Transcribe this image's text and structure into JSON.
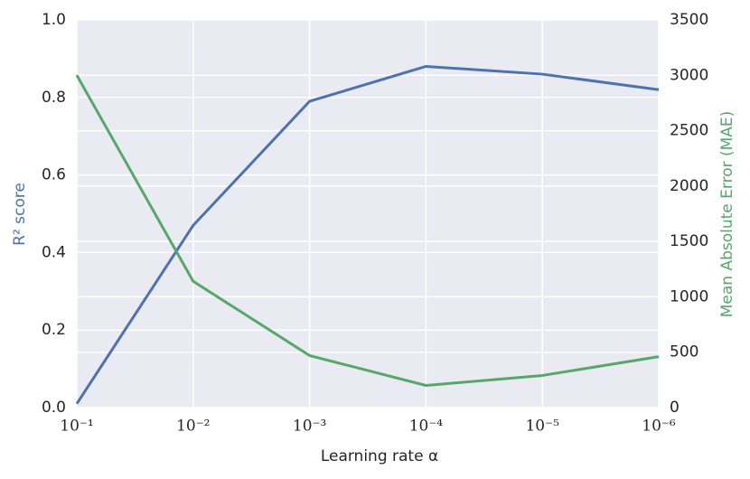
{
  "chart_data": {
    "type": "line",
    "x_label": "Learning rate α",
    "y_label": "R² score",
    "y2_label": "Mean Absolute Error (MAE)",
    "x": [
      0.1,
      0.01,
      0.001,
      0.0001,
      1e-05,
      1e-06
    ],
    "xlog": true,
    "xlim": [
      0.1,
      1e-06
    ],
    "xticks": [
      {
        "value": 0.1,
        "label": "10⁻¹"
      },
      {
        "value": 0.01,
        "label": "10⁻²"
      },
      {
        "value": 0.001,
        "label": "10⁻³"
      },
      {
        "value": 0.0001,
        "label": "10⁻⁴"
      },
      {
        "value": 1e-05,
        "label": "10⁻⁵"
      },
      {
        "value": 1e-06,
        "label": "10⁻⁶"
      }
    ],
    "ylim": [
      0,
      1
    ],
    "yticks": [
      {
        "value": 0,
        "label": "0.0"
      },
      0.2,
      0.4,
      0.6,
      0.8,
      {
        "value": 1,
        "label": "1.0"
      }
    ],
    "y2lim": [
      0,
      3500
    ],
    "y2ticks": [
      0,
      500,
      1000,
      1500,
      2000,
      2500,
      3000,
      3500
    ],
    "grid": true,
    "series": [
      {
        "color": "#4c72b0",
        "values": [
          0.01,
          0.47,
          0.79,
          0.88,
          0.86,
          0.82
        ]
      },
      {
        "color": "#55a868",
        "axis": "y2",
        "values": [
          3000,
          1140,
          470,
          200,
          290,
          460
        ]
      }
    ]
  }
}
